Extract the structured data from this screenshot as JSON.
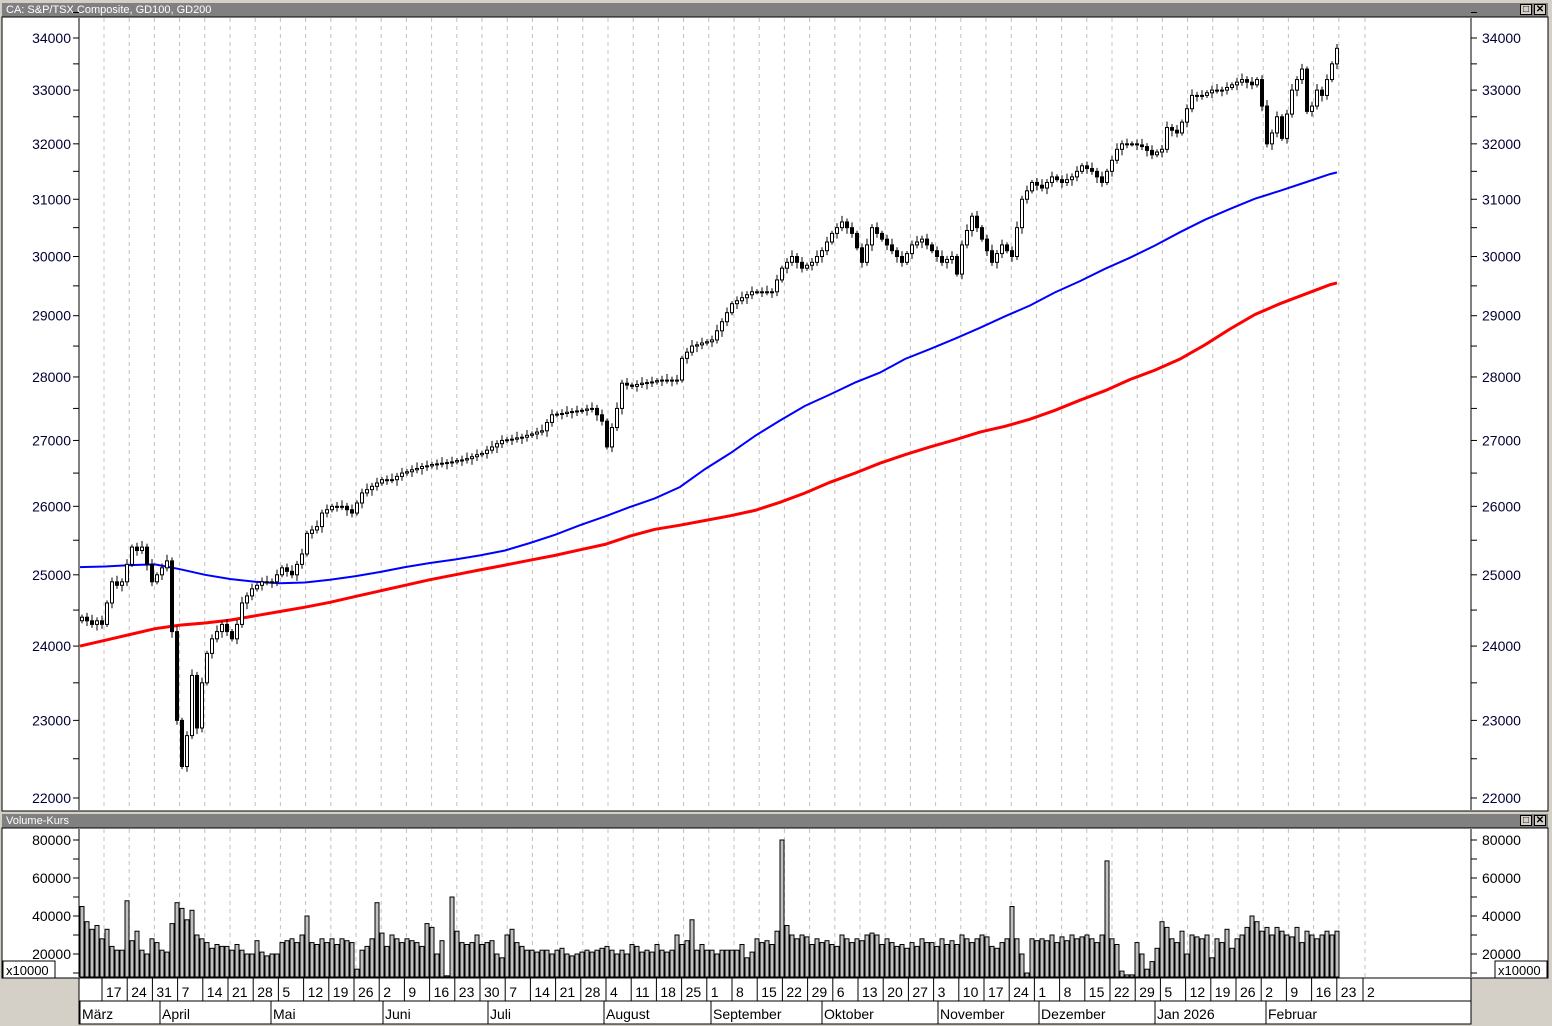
{
  "price_panel": {
    "title": "CA: S&P/TSX Composite,  GD100,  GD200"
  },
  "volume_panel": {
    "title": "Volume-Kurs",
    "multiplier": "x10000"
  },
  "window_icons": [
    "maximize-icon",
    "close-icon"
  ],
  "colors": {
    "gd100": "#0000ff",
    "gd200": "#ff0000",
    "candle": "#000000",
    "volume_fill": "#c0c0c0",
    "grid": "#c0c0c0"
  },
  "chart_data": [
    {
      "type": "candlestick",
      "title": "CA: S&P/TSX Composite,  GD100,  GD200",
      "yscale": "log",
      "ylim": [
        21800,
        34300
      ],
      "yticks": [
        22000,
        23000,
        24000,
        25000,
        26000,
        27000,
        28000,
        29000,
        30000,
        31000,
        32000,
        33000,
        34000
      ],
      "grid": "vertical dashed",
      "close": [
        24400,
        24350,
        24300,
        24350,
        24300,
        24600,
        24900,
        24850,
        24900,
        25150,
        25400,
        25350,
        25400,
        25150,
        24900,
        25000,
        25100,
        25200,
        24200,
        23000,
        22400,
        22800,
        23600,
        22900,
        23500,
        23900,
        24100,
        24200,
        24300,
        24200,
        24100,
        24300,
        24600,
        24700,
        24800,
        24850,
        24900,
        24900,
        24900,
        25000,
        25100,
        25050,
        25000,
        25150,
        25300,
        25600,
        25650,
        25700,
        25900,
        25950,
        26000,
        26000,
        26000,
        25950,
        25900,
        26050,
        26200,
        26250,
        26300,
        26350,
        26400,
        26400,
        26400,
        26450,
        26500,
        26520,
        26550,
        26570,
        26600,
        26610,
        26630,
        26640,
        26650,
        26660,
        26670,
        26690,
        26700,
        26720,
        26750,
        26780,
        26800,
        26850,
        26900,
        26950,
        27000,
        27010,
        27020,
        27040,
        27050,
        27080,
        27100,
        27130,
        27150,
        27280,
        27400,
        27410,
        27420,
        27440,
        27450,
        27460,
        27470,
        27490,
        27500,
        27400,
        27300,
        26900,
        27200,
        27500,
        27900,
        27870,
        27850,
        27880,
        27900,
        27910,
        27920,
        27940,
        27950,
        27950,
        27950,
        27950,
        28300,
        28400,
        28500,
        28520,
        28550,
        28570,
        28600,
        28750,
        28900,
        29050,
        29200,
        29250,
        29300,
        29350,
        29400,
        29400,
        29400,
        29400,
        29400,
        29600,
        29800,
        29900,
        30000,
        29900,
        29800,
        29850,
        29900,
        30000,
        30100,
        30250,
        30400,
        30500,
        30600,
        30500,
        30400,
        30150,
        29900,
        30200,
        30500,
        30400,
        30300,
        30200,
        30100,
        30000,
        29900,
        30050,
        30200,
        30250,
        30300,
        30200,
        30100,
        30000,
        29900,
        29950,
        30000,
        29700,
        30200,
        30450,
        30700,
        30500,
        30300,
        30100,
        29900,
        30050,
        30200,
        30100,
        30000,
        30500,
        31000,
        31150,
        31300,
        31250,
        31200,
        31300,
        31400,
        31350,
        31300,
        31350,
        31400,
        31500,
        31600,
        31550,
        31500,
        31400,
        31300,
        31500,
        31700,
        31900,
        32000,
        32000,
        32000,
        31980,
        31950,
        31880,
        31800,
        31850,
        31900,
        32300,
        32250,
        32200,
        32400,
        32650,
        32900,
        32900,
        32900,
        32950,
        33000,
        33000,
        33000,
        33050,
        33100,
        33150,
        33200,
        33150,
        33100,
        33200,
        32700,
        32000,
        32200,
        32500,
        32100,
        32550,
        33000,
        33200,
        33400,
        32600,
        32700,
        33000,
        32900,
        33200,
        33500,
        33800
      ],
      "series_weekly": [
        {
          "name": "GD100",
          "color": "#0000ff",
          "values": [
            25110,
            25120,
            25140,
            25150,
            25080,
            25000,
            24940,
            24900,
            24880,
            24890,
            24930,
            24980,
            25040,
            25110,
            25170,
            25220,
            25280,
            25350,
            25460,
            25580,
            25720,
            25850,
            25990,
            26120,
            26290,
            26560,
            26800,
            27070,
            27310,
            27540,
            27720,
            27910,
            28070,
            28290,
            28450,
            28620,
            28800,
            28990,
            29170,
            29390,
            29580,
            29790,
            29980,
            30190,
            30420,
            30640,
            30830,
            31010,
            31150,
            31300,
            31450
          ]
        },
        {
          "name": "GD200",
          "color": "#ff0000",
          "values": [
            24000,
            24080,
            24160,
            24240,
            24290,
            24320,
            24360,
            24420,
            24480,
            24540,
            24610,
            24690,
            24770,
            24850,
            24930,
            25000,
            25070,
            25140,
            25210,
            25280,
            25360,
            25440,
            25560,
            25660,
            25720,
            25790,
            25860,
            25940,
            26060,
            26200,
            26360,
            26500,
            26650,
            26780,
            26900,
            27010,
            27130,
            27220,
            27330,
            27470,
            27630,
            27780,
            27960,
            28110,
            28290,
            28520,
            28780,
            29020,
            29200,
            29360,
            29520
          ]
        }
      ]
    },
    {
      "type": "bar",
      "title": "Volume-Kurs",
      "ylim": [
        8000,
        86000
      ],
      "yticks": [
        20000,
        40000,
        60000,
        80000
      ],
      "multiplier": "x10000",
      "values": [
        45000,
        37000,
        33000,
        35000,
        28000,
        33000,
        24000,
        22000,
        22000,
        48000,
        27000,
        32000,
        22000,
        20000,
        28000,
        26000,
        22000,
        21000,
        36000,
        47000,
        44000,
        38000,
        43000,
        30000,
        28000,
        26000,
        23000,
        25000,
        24000,
        24000,
        22000,
        25000,
        22000,
        20000,
        20000,
        27000,
        21000,
        19000,
        20000,
        20000,
        26000,
        27000,
        28000,
        26000,
        30000,
        40000,
        26000,
        25000,
        28000,
        26000,
        28000,
        25000,
        28000,
        27000,
        26000,
        12000,
        22000,
        24000,
        28000,
        47000,
        31000,
        24000,
        30000,
        28000,
        26000,
        28000,
        27000,
        26000,
        24000,
        36000,
        34000,
        20000,
        27000,
        8500,
        50000,
        32000,
        26000,
        25000,
        26000,
        30000,
        25000,
        26000,
        27000,
        20000,
        18000,
        30000,
        33000,
        26000,
        24000,
        22000,
        22000,
        21000,
        22000,
        22000,
        20000,
        22000,
        23000,
        20000,
        19000,
        20000,
        21000,
        22000,
        21000,
        22000,
        23000,
        24000,
        22000,
        20000,
        22000,
        20000,
        25000,
        24000,
        21000,
        22000,
        21000,
        25000,
        22000,
        21000,
        22000,
        30000,
        25000,
        27000,
        38000,
        22000,
        25000,
        22000,
        22000,
        20000,
        22000,
        22000,
        22000,
        22000,
        25000,
        18000,
        21000,
        28000,
        26000,
        27000,
        25000,
        32000,
        80000,
        35000,
        30000,
        28000,
        30000,
        29000,
        25000,
        28000,
        26000,
        27000,
        25000,
        24000,
        30000,
        28000,
        26000,
        28000,
        27000,
        30000,
        31000,
        30000,
        25000,
        28000,
        26000,
        24000,
        25000,
        23000,
        26000,
        24000,
        28000,
        26000,
        26000,
        24000,
        28000,
        25000,
        27000,
        25000,
        30000,
        28000,
        26000,
        28000,
        30000,
        29000,
        24000,
        23000,
        26000,
        28000,
        45000,
        28000,
        20000,
        10000,
        28000,
        27000,
        28000,
        27000,
        30000,
        26000,
        29000,
        27000,
        30000,
        28000,
        29000,
        30000,
        28000,
        26000,
        30000,
        69000,
        28000,
        25000,
        11000,
        9000,
        9000,
        26000,
        20000,
        12000,
        16000,
        23000,
        37000,
        34000,
        28000,
        26000,
        32000,
        20000,
        30000,
        29000,
        28000,
        30000,
        18000,
        28000,
        26000,
        33000,
        23000,
        28000,
        30000,
        34000,
        40000,
        37000,
        32000,
        34000,
        30000,
        34000,
        32000,
        30000,
        29000,
        34000,
        26000,
        32000,
        30000,
        28000,
        30000,
        32000,
        30000,
        32000
      ]
    }
  ],
  "x_axis": {
    "week_labels": [
      "17",
      "24",
      "31",
      "7",
      "14",
      "21",
      "28",
      "5",
      "12",
      "19",
      "26",
      "2",
      "9",
      "16",
      "23",
      "30",
      "7",
      "14",
      "21",
      "28",
      "4",
      "11",
      "18",
      "25",
      "1",
      "8",
      "15",
      "22",
      "29",
      "6",
      "13",
      "20",
      "27",
      "3",
      "10",
      "17",
      "24",
      "1",
      "8",
      "15",
      "22",
      "29",
      "5",
      "12",
      "19",
      "26",
      "2",
      "9",
      "16",
      "23",
      "2"
    ],
    "months": [
      "März",
      "April",
      "Mai",
      "Juni",
      "Juli",
      "August",
      "September",
      "Oktober",
      "November",
      "Dezember",
      "Jan 2026",
      "Februar"
    ]
  }
}
